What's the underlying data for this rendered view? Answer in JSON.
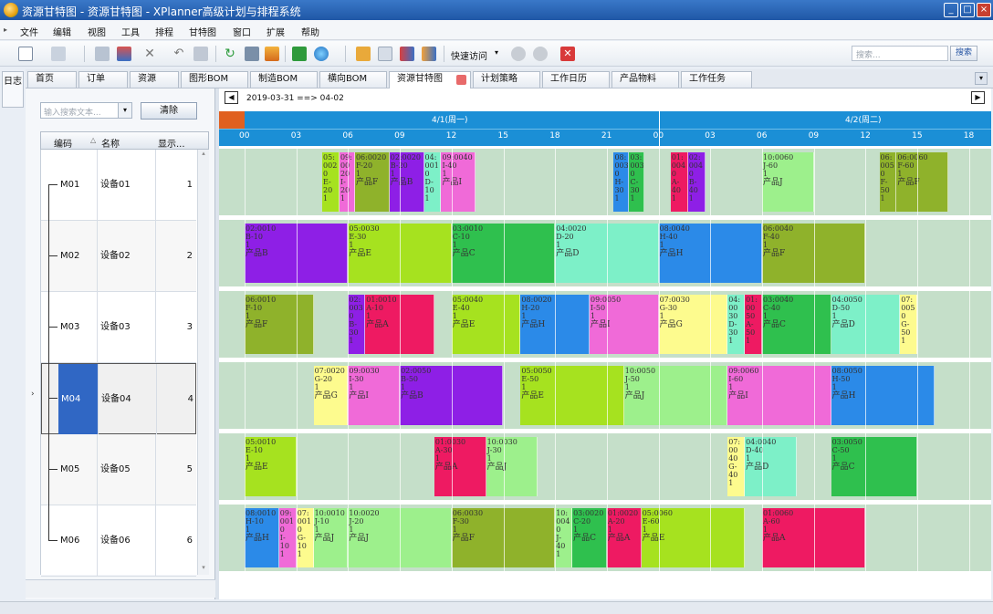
{
  "window": {
    "title": "资源甘特图 - 资源甘特图 - XPlanner高级计划与排程系统",
    "controls": [
      "_",
      "□",
      "×"
    ]
  },
  "menu": [
    "文件",
    "编辑",
    "视图",
    "工具",
    "排程",
    "甘特图",
    "窗口",
    "扩展",
    "帮助"
  ],
  "toolbar": {
    "quick_access_label": "快速访问",
    "search_placeholder": "搜索...",
    "search_button": "搜索"
  },
  "side_strip": {
    "label": "日志"
  },
  "tabs": [
    "首页",
    "订单",
    "资源",
    "图形BOM",
    "制造BOM",
    "横向BOM",
    "资源甘特图",
    "计划策略",
    "工作日历",
    "产品物料",
    "工作任务"
  ],
  "active_tab": "资源甘特图",
  "left_panel": {
    "search_placeholder": "输入搜索文本...",
    "clear_button": "清除",
    "columns": [
      "编码",
      "名称",
      "显示..."
    ],
    "rows": [
      {
        "code": "M01",
        "name": "设备01",
        "num": "1"
      },
      {
        "code": "M02",
        "name": "设备02",
        "num": "2"
      },
      {
        "code": "M03",
        "name": "设备03",
        "num": "3"
      },
      {
        "code": "M04",
        "name": "设备04",
        "num": "4"
      },
      {
        "code": "M05",
        "name": "设备05",
        "num": "5"
      },
      {
        "code": "M06",
        "name": "设备06",
        "num": "6"
      }
    ],
    "selected_row": "M04"
  },
  "gantt": {
    "date_range": "2019-03-31 ==> 04-02",
    "days": [
      "4/1(周一)",
      "4/2(周二)"
    ],
    "hours": [
      "00",
      "03",
      "06",
      "09",
      "12",
      "15",
      "18",
      "21",
      "00",
      "03",
      "06",
      "09",
      "12",
      "15",
      "18"
    ],
    "colors": {
      "E": "#a6e21f",
      "F": "#8fb22b",
      "G": "#fdfb8e",
      "I": "#f06ad8",
      "J": "#9df08c",
      "A": "#ee1a62",
      "B": "#8e1fe6",
      "C": "#2fc04e",
      "D": "#7df0c8",
      "H": "#2b8ae8"
    },
    "lanes": [
      {
        "id": "M01",
        "tasks": [
          {
            "s": 4.5,
            "e": 5.5,
            "c": "E",
            "lines": [
              "05:",
              "002",
              "0",
              "E-",
              "20",
              "1"
            ],
            "prod": ""
          },
          {
            "s": 5.5,
            "e": 6.4,
            "c": "I",
            "lines": [
              "09:",
              "00",
              "20",
              "I-",
              "20",
              "1"
            ],
            "prod": ""
          },
          {
            "s": 6.4,
            "e": 8.4,
            "c": "F",
            "lines": [
              "06:0020",
              "F-20",
              "1"
            ],
            "prod": "产品F"
          },
          {
            "s": 8.4,
            "e": 10.4,
            "c": "B",
            "lines": [
              "02:0020",
              "B-20",
              "1"
            ],
            "prod": "产品B"
          },
          {
            "s": 10.4,
            "e": 11.4,
            "c": "D",
            "lines": [
              "04:",
              "001",
              "0",
              "D-",
              "10",
              "1"
            ],
            "prod": ""
          },
          {
            "s": 11.4,
            "e": 13.4,
            "c": "I",
            "lines": [
              "09:0040",
              "I-40",
              "1"
            ],
            "prod": "产品I"
          },
          {
            "s": 21.4,
            "e": 22.3,
            "c": "H",
            "lines": [
              "08:",
              "003",
              "0",
              "H-",
              "30",
              "1"
            ],
            "prod": ""
          },
          {
            "s": 22.3,
            "e": 23.2,
            "c": "C",
            "lines": [
              "03:",
              "003",
              "0",
              "C-",
              "30",
              "1"
            ],
            "prod": ""
          },
          {
            "s": 24.7,
            "e": 25.7,
            "c": "A",
            "lines": [
              "01:",
              "004",
              "0",
              "A-",
              "40",
              "1"
            ],
            "prod": ""
          },
          {
            "s": 25.7,
            "e": 26.7,
            "c": "B",
            "lines": [
              "02:",
              "004",
              "0",
              "B-",
              "40",
              "1"
            ],
            "prod": ""
          },
          {
            "s": 30.0,
            "e": 33.0,
            "c": "J",
            "lines": [
              "10:0060",
              "J-60",
              "1"
            ],
            "prod": "产品J"
          },
          {
            "s": 36.8,
            "e": 37.8,
            "c": "F",
            "lines": [
              "06:",
              "005",
              "0",
              "F-",
              "50",
              "1"
            ],
            "prod": ""
          },
          {
            "s": 37.8,
            "e": 40.8,
            "c": "F",
            "lines": [
              "06:0060",
              "F-60",
              "1"
            ],
            "prod": "产品F"
          }
        ]
      },
      {
        "id": "M02",
        "tasks": [
          {
            "s": 0.0,
            "e": 6.0,
            "c": "B",
            "lines": [
              "02:0010",
              "B-10",
              "1"
            ],
            "prod": "产品B"
          },
          {
            "s": 6.0,
            "e": 12.0,
            "c": "E",
            "lines": [
              "05:0030",
              "E-30",
              "1"
            ],
            "prod": "产品E"
          },
          {
            "s": 12.0,
            "e": 18.0,
            "c": "C",
            "lines": [
              "03:0010",
              "C-10",
              "1"
            ],
            "prod": "产品C"
          },
          {
            "s": 18.0,
            "e": 24.0,
            "c": "D",
            "lines": [
              "04:0020",
              "D-20",
              "1"
            ],
            "prod": "产品D"
          },
          {
            "s": 24.0,
            "e": 30.0,
            "c": "H",
            "lines": [
              "08:0040",
              "H-40",
              "1"
            ],
            "prod": "产品H"
          },
          {
            "s": 30.0,
            "e": 36.0,
            "c": "F",
            "lines": [
              "06:0040",
              "F-40",
              "1"
            ],
            "prod": "产品F"
          }
        ]
      },
      {
        "id": "M03",
        "tasks": [
          {
            "s": 0.0,
            "e": 4.0,
            "c": "F",
            "lines": [
              "06:0010",
              "F-10",
              "1"
            ],
            "prod": "产品F"
          },
          {
            "s": 6.0,
            "e": 7.0,
            "c": "B",
            "lines": [
              "02:",
              "003",
              "0",
              "B-",
              "30",
              "1"
            ],
            "prod": ""
          },
          {
            "s": 7.0,
            "e": 11.0,
            "c": "A",
            "lines": [
              "01:0010",
              "A-10",
              "1"
            ],
            "prod": "产品A"
          },
          {
            "s": 12.0,
            "e": 16.0,
            "c": "E",
            "lines": [
              "05:0040",
              "E-40",
              "1"
            ],
            "prod": "产品E"
          },
          {
            "s": 16.0,
            "e": 20.0,
            "c": "H",
            "lines": [
              "08:0020",
              "H-20",
              "1"
            ],
            "prod": "产品H"
          },
          {
            "s": 20.0,
            "e": 24.0,
            "c": "I",
            "lines": [
              "09:0050",
              "I-50",
              "1"
            ],
            "prod": "产品I"
          },
          {
            "s": 24.0,
            "e": 28.0,
            "c": "G",
            "lines": [
              "07:0030",
              "G-30",
              "1"
            ],
            "prod": "产品G"
          },
          {
            "s": 28.0,
            "e": 29.0,
            "c": "D",
            "lines": [
              "04:",
              "00",
              "30",
              "D-",
              "30",
              "1"
            ],
            "prod": ""
          },
          {
            "s": 29.0,
            "e": 30.0,
            "c": "A",
            "lines": [
              "01:",
              "00",
              "50",
              "A-",
              "50",
              "1"
            ],
            "prod": ""
          },
          {
            "s": 30.0,
            "e": 34.0,
            "c": "C",
            "lines": [
              "03:0040",
              "C-40",
              "1"
            ],
            "prod": "产品C"
          },
          {
            "s": 34.0,
            "e": 38.0,
            "c": "D",
            "lines": [
              "04:0050",
              "D-50",
              "1"
            ],
            "prod": "产品D"
          },
          {
            "s": 38.0,
            "e": 39.0,
            "c": "G",
            "lines": [
              "07:",
              "005",
              "0",
              "G-",
              "50",
              "1"
            ],
            "prod": ""
          }
        ]
      },
      {
        "id": "M04",
        "tasks": [
          {
            "s": 4.0,
            "e": 6.0,
            "c": "G",
            "lines": [
              "07:0020",
              "G-20",
              "1"
            ],
            "prod": "产品G"
          },
          {
            "s": 6.0,
            "e": 9.0,
            "c": "I",
            "lines": [
              "09:0030",
              "I-30",
              "1"
            ],
            "prod": "产品I"
          },
          {
            "s": 9.0,
            "e": 15.0,
            "c": "B",
            "lines": [
              "02:0050",
              "B-50",
              "1"
            ],
            "prod": "产品B"
          },
          {
            "s": 16.0,
            "e": 22.0,
            "c": "E",
            "lines": [
              "05:0050",
              "E-50",
              "1"
            ],
            "prod": "产品E"
          },
          {
            "s": 22.0,
            "e": 28.0,
            "c": "J",
            "lines": [
              "10:0050",
              "J-50",
              "1"
            ],
            "prod": "产品J"
          },
          {
            "s": 28.0,
            "e": 34.0,
            "c": "I",
            "lines": [
              "09:0060",
              "I-60",
              "1"
            ],
            "prod": "产品I"
          },
          {
            "s": 34.0,
            "e": 40.0,
            "c": "H",
            "lines": [
              "08:0050",
              "H-50",
              "1"
            ],
            "prod": "产品H"
          }
        ]
      },
      {
        "id": "M05",
        "tasks": [
          {
            "s": 0.0,
            "e": 3.0,
            "c": "E",
            "lines": [
              "05:0010",
              "E-10",
              "1"
            ],
            "prod": "产品E"
          },
          {
            "s": 11.0,
            "e": 14.0,
            "c": "A",
            "lines": [
              "01:0030",
              "A-30",
              "1"
            ],
            "prod": "产品A"
          },
          {
            "s": 14.0,
            "e": 17.0,
            "c": "J",
            "lines": [
              "10:0030",
              "J-30",
              "1"
            ],
            "prod": "产品J"
          },
          {
            "s": 28.0,
            "e": 29.0,
            "c": "G",
            "lines": [
              "07:",
              "00",
              "40",
              "G-",
              "40",
              "1"
            ],
            "prod": ""
          },
          {
            "s": 29.0,
            "e": 32.0,
            "c": "D",
            "lines": [
              "04:0040",
              "D-40",
              "1"
            ],
            "prod": "产品D"
          },
          {
            "s": 34.0,
            "e": 39.0,
            "c": "C",
            "lines": [
              "03:0050",
              "C-50",
              "1"
            ],
            "prod": "产品C"
          }
        ]
      },
      {
        "id": "M06",
        "tasks": [
          {
            "s": 0.0,
            "e": 2.0,
            "c": "H",
            "lines": [
              "08:0010",
              "H-10",
              "1"
            ],
            "prod": "产品H"
          },
          {
            "s": 2.0,
            "e": 3.0,
            "c": "I",
            "lines": [
              "09:",
              "001",
              "0",
              "I-",
              "10",
              "1"
            ],
            "prod": ""
          },
          {
            "s": 3.0,
            "e": 4.0,
            "c": "G",
            "lines": [
              "07:",
              "001",
              "0",
              "G-",
              "10",
              "1"
            ],
            "prod": ""
          },
          {
            "s": 4.0,
            "e": 6.0,
            "c": "J",
            "lines": [
              "10:0010",
              "J-10",
              "1"
            ],
            "prod": "产品J"
          },
          {
            "s": 6.0,
            "e": 12.0,
            "c": "J",
            "lines": [
              "10:0020",
              "J-20",
              "1"
            ],
            "prod": "产品J"
          },
          {
            "s": 12.0,
            "e": 18.0,
            "c": "F",
            "lines": [
              "06:0030",
              "F-30",
              "1"
            ],
            "prod": "产品F"
          },
          {
            "s": 18.0,
            "e": 19.0,
            "c": "J",
            "lines": [
              "10:",
              "004",
              "0",
              "J-",
              "40",
              "1"
            ],
            "prod": ""
          },
          {
            "s": 19.0,
            "e": 21.0,
            "c": "C",
            "lines": [
              "03:0020",
              "C-20",
              "1"
            ],
            "prod": "产品C"
          },
          {
            "s": 21.0,
            "e": 23.0,
            "c": "A",
            "lines": [
              "01:0020",
              "A-20",
              "1"
            ],
            "prod": "产品A"
          },
          {
            "s": 23.0,
            "e": 29.0,
            "c": "E",
            "lines": [
              "05:0060",
              "E-60",
              "1"
            ],
            "prod": "产品E"
          },
          {
            "s": 30.0,
            "e": 36.0,
            "c": "A",
            "lines": [
              "01:0060",
              "A-60",
              "1"
            ],
            "prod": "产品A"
          }
        ]
      }
    ]
  }
}
